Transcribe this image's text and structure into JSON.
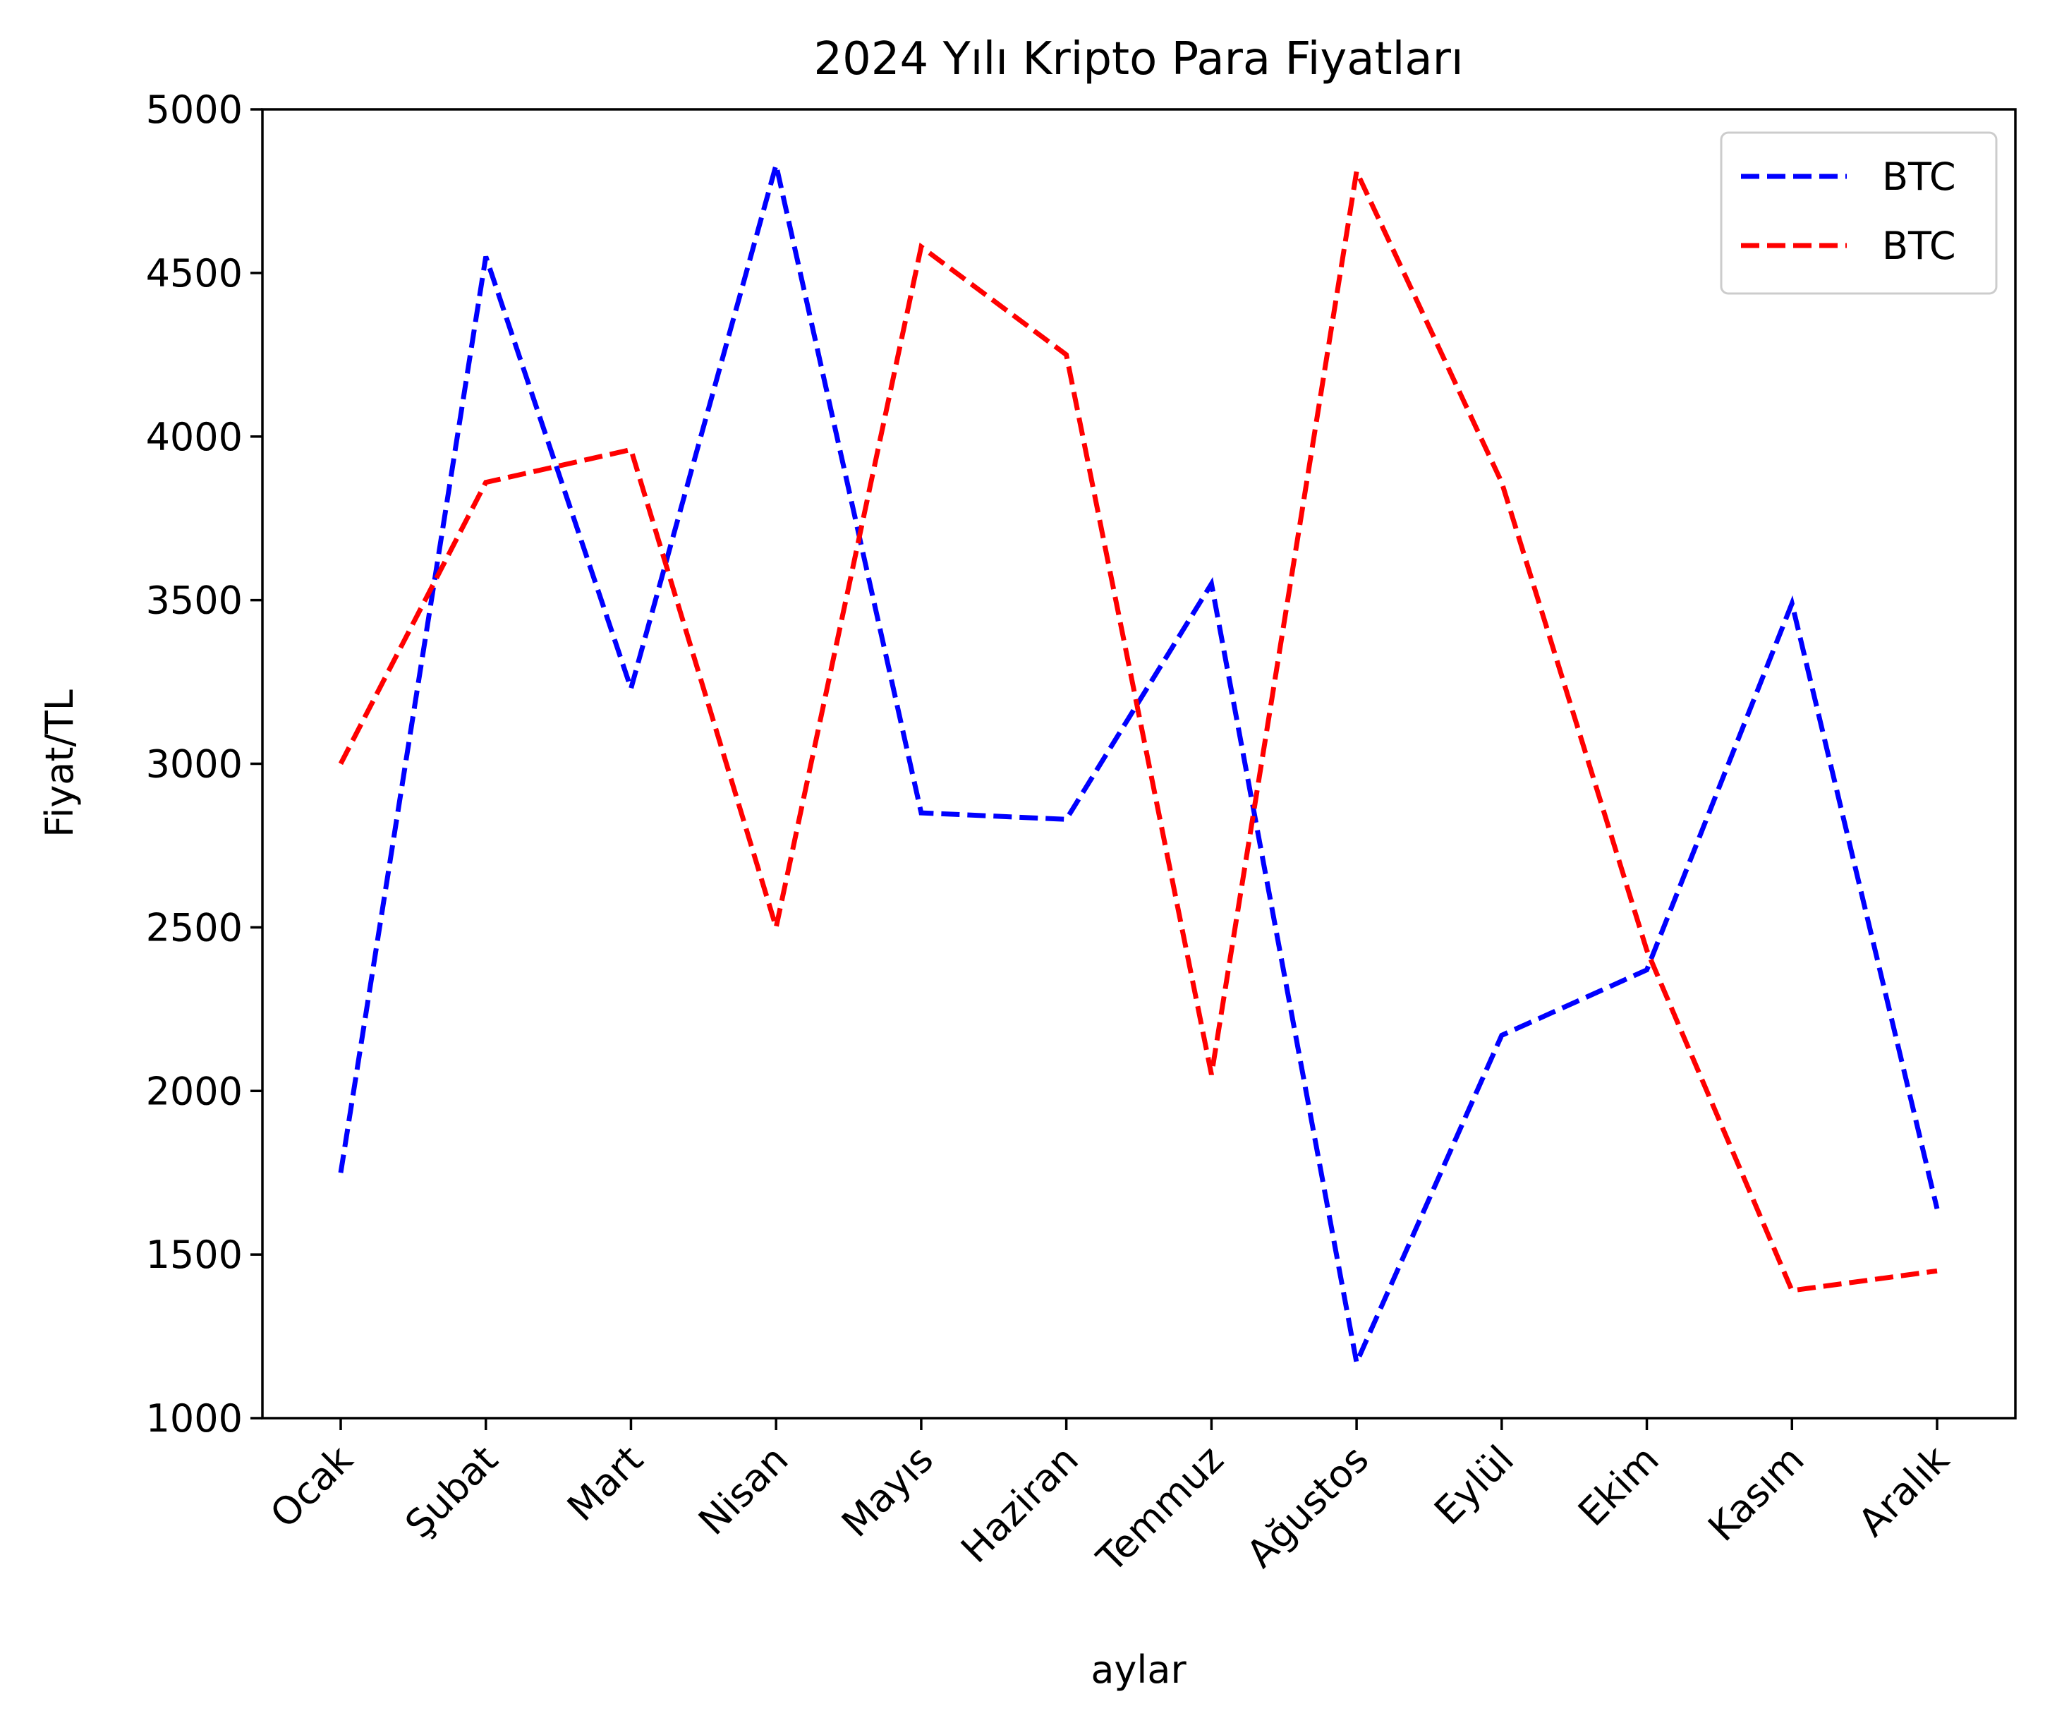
{
  "chart_data": {
    "type": "line",
    "title": "2024 Yılı Kripto Para Fiyatları",
    "xlabel": "aylar",
    "ylabel": "Fiyat/TL",
    "categories": [
      "Ocak",
      "Şubat",
      "Mart",
      "Nisan",
      "Mayıs",
      "Haziran",
      "Temmuz",
      "Ağustos",
      "Eylül",
      "Ekim",
      "Kasım",
      "Aralık"
    ],
    "ylim": [
      1000,
      5000
    ],
    "yticks": [
      1000,
      1500,
      2000,
      2500,
      3000,
      3500,
      4000,
      4500,
      5000
    ],
    "grid": false,
    "legend_position": "top-right",
    "line_style": "dashed",
    "series": [
      {
        "name": "BTC",
        "color": "#0000ff",
        "values": [
          1750,
          4550,
          3230,
          4830,
          2850,
          2830,
          3550,
          1170,
          2170,
          2370,
          3490,
          1640
        ]
      },
      {
        "name": "BTC",
        "color": "#ff0000",
        "values": [
          3000,
          3860,
          3960,
          2500,
          4580,
          4250,
          2050,
          4810,
          3860,
          2430,
          1390,
          1450
        ]
      }
    ]
  }
}
